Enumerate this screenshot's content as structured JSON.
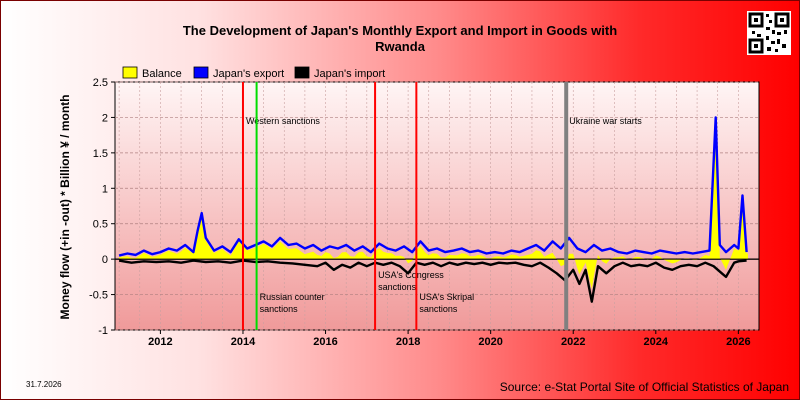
{
  "title": "The Development of Japan's Monthly Export and Import in Goods with",
  "subtitle": "Rwanda",
  "date_stamp": "31.7.2026",
  "source": "Source: e-Stat Portal Site of Official Statistics of Japan",
  "qr_icon": "qr-code-icon",
  "colors": {
    "balance": "#ffff00",
    "export": "#0000ff",
    "import": "#000000",
    "event_red": "#ff0000",
    "event_green": "#00dd00",
    "event_gray": "#808080"
  },
  "chart_data": {
    "type": "line",
    "title": "The Development of Japan's Monthly Export and Import in Goods with Rwanda",
    "ylabel": "Money flow (+in -out) * Billion ¥ / month",
    "xlabel": "",
    "xlim": [
      2010.9,
      2026.5
    ],
    "ylim": [
      -1,
      2.5
    ],
    "x_ticks": [
      "2012",
      "2014",
      "2016",
      "2018",
      "2020",
      "2022",
      "2024",
      "2026"
    ],
    "y_ticks": [
      "2.5",
      "2",
      "1.5",
      "1",
      "0.5",
      "0",
      "-0.5",
      "-1"
    ],
    "grid": true,
    "legend_position": "top-left",
    "series": [
      {
        "name": "Balance",
        "color": "#ffff00",
        "kind": "area"
      },
      {
        "name": "Japan's export",
        "color": "#0000ff",
        "kind": "line"
      },
      {
        "name": "Japan's import",
        "color": "#000000",
        "kind": "line"
      }
    ],
    "export": [
      [
        2011.0,
        0.05
      ],
      [
        2011.2,
        0.08
      ],
      [
        2011.4,
        0.06
      ],
      [
        2011.6,
        0.12
      ],
      [
        2011.8,
        0.07
      ],
      [
        2012.0,
        0.1
      ],
      [
        2012.2,
        0.15
      ],
      [
        2012.4,
        0.12
      ],
      [
        2012.6,
        0.2
      ],
      [
        2012.8,
        0.1
      ],
      [
        2012.9,
        0.4
      ],
      [
        2013.0,
        0.65
      ],
      [
        2013.1,
        0.3
      ],
      [
        2013.3,
        0.12
      ],
      [
        2013.5,
        0.18
      ],
      [
        2013.7,
        0.1
      ],
      [
        2013.9,
        0.28
      ],
      [
        2014.1,
        0.15
      ],
      [
        2014.3,
        0.2
      ],
      [
        2014.5,
        0.25
      ],
      [
        2014.7,
        0.18
      ],
      [
        2014.9,
        0.3
      ],
      [
        2015.1,
        0.2
      ],
      [
        2015.3,
        0.22
      ],
      [
        2015.5,
        0.15
      ],
      [
        2015.7,
        0.2
      ],
      [
        2015.9,
        0.12
      ],
      [
        2016.1,
        0.18
      ],
      [
        2016.3,
        0.15
      ],
      [
        2016.5,
        0.2
      ],
      [
        2016.7,
        0.12
      ],
      [
        2016.9,
        0.18
      ],
      [
        2017.1,
        0.1
      ],
      [
        2017.3,
        0.22
      ],
      [
        2017.5,
        0.15
      ],
      [
        2017.7,
        0.12
      ],
      [
        2017.9,
        0.18
      ],
      [
        2018.1,
        0.1
      ],
      [
        2018.3,
        0.25
      ],
      [
        2018.5,
        0.12
      ],
      [
        2018.7,
        0.15
      ],
      [
        2018.9,
        0.1
      ],
      [
        2019.1,
        0.12
      ],
      [
        2019.3,
        0.15
      ],
      [
        2019.5,
        0.1
      ],
      [
        2019.7,
        0.12
      ],
      [
        2019.9,
        0.08
      ],
      [
        2020.1,
        0.1
      ],
      [
        2020.3,
        0.08
      ],
      [
        2020.5,
        0.12
      ],
      [
        2020.7,
        0.1
      ],
      [
        2020.9,
        0.15
      ],
      [
        2021.1,
        0.2
      ],
      [
        2021.3,
        0.12
      ],
      [
        2021.5,
        0.25
      ],
      [
        2021.7,
        0.15
      ],
      [
        2021.9,
        0.3
      ],
      [
        2022.1,
        0.15
      ],
      [
        2022.3,
        0.1
      ],
      [
        2022.5,
        0.2
      ],
      [
        2022.7,
        0.12
      ],
      [
        2022.9,
        0.15
      ],
      [
        2023.1,
        0.1
      ],
      [
        2023.3,
        0.08
      ],
      [
        2023.5,
        0.12
      ],
      [
        2023.7,
        0.1
      ],
      [
        2023.9,
        0.08
      ],
      [
        2024.1,
        0.12
      ],
      [
        2024.3,
        0.1
      ],
      [
        2024.5,
        0.08
      ],
      [
        2024.7,
        0.1
      ],
      [
        2024.9,
        0.08
      ],
      [
        2025.1,
        0.1
      ],
      [
        2025.3,
        0.12
      ],
      [
        2025.45,
        2.0
      ],
      [
        2025.55,
        0.2
      ],
      [
        2025.7,
        0.1
      ],
      [
        2025.9,
        0.2
      ],
      [
        2026.0,
        0.15
      ],
      [
        2026.1,
        0.9
      ],
      [
        2026.2,
        0.1
      ]
    ],
    "import": [
      [
        2011.0,
        -0.02
      ],
      [
        2011.3,
        -0.05
      ],
      [
        2011.6,
        -0.03
      ],
      [
        2011.9,
        -0.04
      ],
      [
        2012.2,
        -0.03
      ],
      [
        2012.5,
        -0.05
      ],
      [
        2012.8,
        -0.02
      ],
      [
        2013.1,
        -0.04
      ],
      [
        2013.4,
        -0.03
      ],
      [
        2013.7,
        -0.05
      ],
      [
        2014.0,
        -0.02
      ],
      [
        2014.3,
        -0.04
      ],
      [
        2014.6,
        -0.03
      ],
      [
        2014.9,
        -0.05
      ],
      [
        2015.2,
        -0.06
      ],
      [
        2015.5,
        -0.08
      ],
      [
        2015.8,
        -0.1
      ],
      [
        2016.0,
        -0.05
      ],
      [
        2016.2,
        -0.15
      ],
      [
        2016.4,
        -0.08
      ],
      [
        2016.6,
        -0.12
      ],
      [
        2016.8,
        -0.05
      ],
      [
        2017.0,
        -0.1
      ],
      [
        2017.2,
        -0.05
      ],
      [
        2017.4,
        -0.08
      ],
      [
        2017.6,
        -0.05
      ],
      [
        2017.8,
        -0.1
      ],
      [
        2018.0,
        -0.2
      ],
      [
        2018.2,
        -0.05
      ],
      [
        2018.4,
        -0.08
      ],
      [
        2018.6,
        -0.05
      ],
      [
        2018.8,
        -0.1
      ],
      [
        2019.0,
        -0.05
      ],
      [
        2019.2,
        -0.08
      ],
      [
        2019.4,
        -0.05
      ],
      [
        2019.6,
        -0.07
      ],
      [
        2019.8,
        -0.05
      ],
      [
        2020.0,
        -0.08
      ],
      [
        2020.2,
        -0.05
      ],
      [
        2020.4,
        -0.06
      ],
      [
        2020.6,
        -0.05
      ],
      [
        2020.8,
        -0.08
      ],
      [
        2021.0,
        -0.1
      ],
      [
        2021.2,
        -0.05
      ],
      [
        2021.4,
        -0.12
      ],
      [
        2021.6,
        -0.2
      ],
      [
        2021.8,
        -0.3
      ],
      [
        2022.0,
        -0.15
      ],
      [
        2022.15,
        -0.35
      ],
      [
        2022.3,
        -0.15
      ],
      [
        2022.45,
        -0.6
      ],
      [
        2022.6,
        -0.1
      ],
      [
        2022.8,
        -0.2
      ],
      [
        2023.0,
        -0.1
      ],
      [
        2023.2,
        -0.05
      ],
      [
        2023.4,
        -0.1
      ],
      [
        2023.6,
        -0.08
      ],
      [
        2023.8,
        -0.1
      ],
      [
        2024.0,
        -0.05
      ],
      [
        2024.2,
        -0.12
      ],
      [
        2024.4,
        -0.15
      ],
      [
        2024.6,
        -0.1
      ],
      [
        2024.8,
        -0.08
      ],
      [
        2025.0,
        -0.1
      ],
      [
        2025.2,
        -0.05
      ],
      [
        2025.4,
        -0.1
      ],
      [
        2025.6,
        -0.2
      ],
      [
        2025.7,
        -0.25
      ],
      [
        2025.8,
        -0.15
      ],
      [
        2025.9,
        -0.05
      ],
      [
        2026.0,
        -0.03
      ],
      [
        2026.2,
        -0.02
      ]
    ],
    "events": [
      {
        "label": "Western sanctions",
        "x": 2014.0,
        "color": "#ff0000",
        "label_pos": "top"
      },
      {
        "label": "Russian counter sanctions",
        "x": 2014.33,
        "color": "#00dd00",
        "label_pos": "bottom"
      },
      {
        "label": "USA's Congress sanctions",
        "x": 2017.2,
        "color": "#ff0000",
        "label_pos": "middle"
      },
      {
        "label": "USA's Skripal sanctions",
        "x": 2018.2,
        "color": "#ff0000",
        "label_pos": "bottom"
      },
      {
        "label": "Ukraine war starts",
        "x": 2021.83,
        "color": "#808080",
        "label_pos": "top"
      }
    ]
  }
}
